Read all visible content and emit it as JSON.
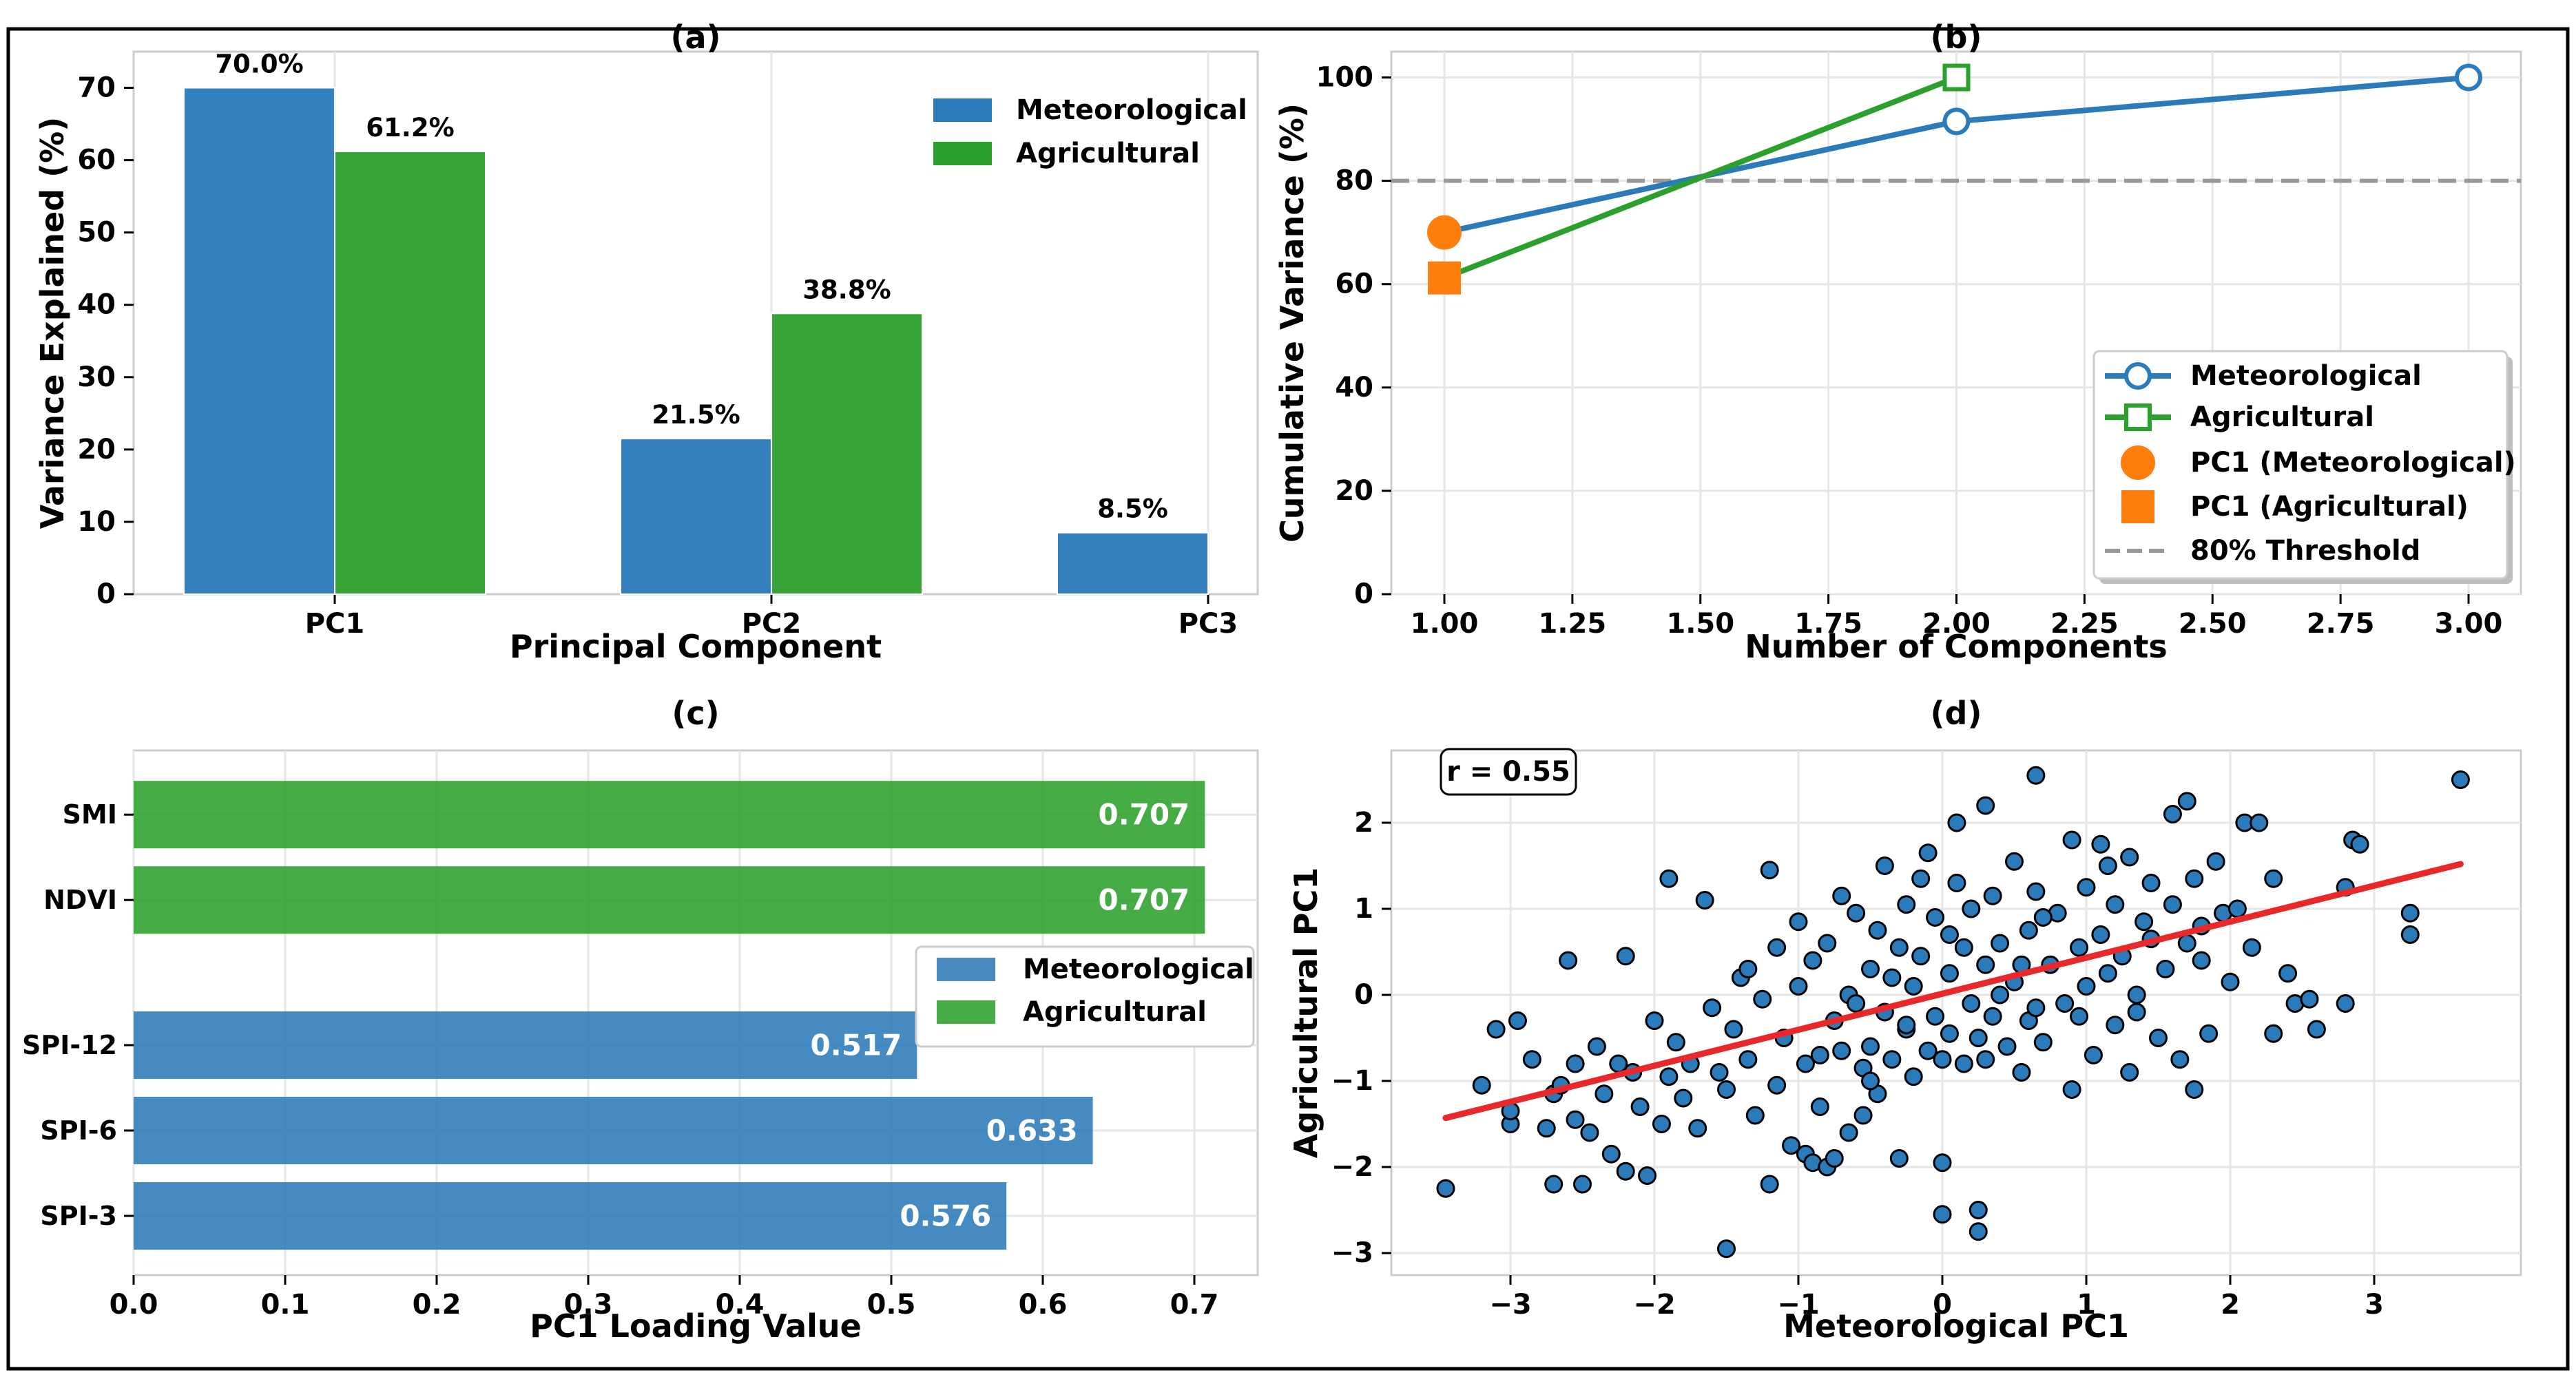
{
  "colors": {
    "meteorological": "#2b7bba",
    "agricultural": "#2ca02c",
    "pc1_marker": "#ff7f0e",
    "threshold": "#999999",
    "regression": "#e8282b",
    "grid": "#e6e6e6"
  },
  "chart_data": [
    {
      "panel": "a",
      "type": "bar",
      "title": "(a)",
      "xlabel": "Principal Component",
      "ylabel": "Variance Explained (%)",
      "categories": [
        "PC1",
        "PC2",
        "PC3"
      ],
      "ylim": [
        0,
        75
      ],
      "yticks": [
        0,
        10,
        20,
        30,
        40,
        50,
        60,
        70
      ],
      "series": [
        {
          "name": "Meteorological",
          "values": [
            70.0,
            21.5,
            8.5
          ],
          "labels": [
            "70.0%",
            "21.5%",
            "8.5%"
          ]
        },
        {
          "name": "Agricultural",
          "values": [
            61.2,
            38.8,
            null
          ],
          "labels": [
            "61.2%",
            "38.8%",
            ""
          ]
        }
      ],
      "legend": "top-right"
    },
    {
      "panel": "b",
      "type": "line",
      "title": "(b)",
      "xlabel": "Number of Components",
      "ylabel": "Cumulative Variance (%)",
      "xlim": [
        0.9,
        3.1
      ],
      "ylim": [
        0,
        105
      ],
      "xticks": [
        1.0,
        1.25,
        1.5,
        1.75,
        2.0,
        2.25,
        2.5,
        2.75,
        3.0
      ],
      "xtick_labels": [
        "1.00",
        "1.25",
        "1.50",
        "1.75",
        "2.00",
        "2.25",
        "2.50",
        "2.75",
        "3.00"
      ],
      "yticks": [
        0,
        20,
        40,
        60,
        80,
        100
      ],
      "series": [
        {
          "name": "Meteorological",
          "x": [
            1,
            2,
            3
          ],
          "y": [
            70.0,
            91.5,
            100.0
          ],
          "marker": "circle"
        },
        {
          "name": "Agricultural",
          "x": [
            1,
            2
          ],
          "y": [
            61.2,
            100.0
          ],
          "marker": "square"
        }
      ],
      "points": [
        {
          "name": "PC1 (Meteorological)",
          "x": 1,
          "y": 70.0,
          "marker": "circle"
        },
        {
          "name": "PC1 (Agricultural)",
          "x": 1,
          "y": 61.2,
          "marker": "square"
        }
      ],
      "threshold": {
        "name": "80% Threshold",
        "y": 80
      },
      "legend": "lower-right"
    },
    {
      "panel": "c",
      "type": "bar",
      "orientation": "horizontal",
      "title": "(c)",
      "xlabel": "PC1 Loading Value",
      "ylabel": "",
      "xlim": [
        0,
        0.72
      ],
      "xticks": [
        0.0,
        0.1,
        0.2,
        0.3,
        0.4,
        0.5,
        0.6,
        0.7
      ],
      "xtick_labels": [
        "0.0",
        "0.1",
        "0.2",
        "0.3",
        "0.4",
        "0.5",
        "0.6",
        "0.7"
      ],
      "bars": [
        {
          "label": "SPI-3",
          "value": 0.576,
          "text": "0.576",
          "group": "Meteorological",
          "slot": 0
        },
        {
          "label": "SPI-6",
          "value": 0.633,
          "text": "0.633",
          "group": "Meteorological",
          "slot": 1
        },
        {
          "label": "SPI-12",
          "value": 0.517,
          "text": "0.517",
          "group": "Meteorological",
          "slot": 2
        },
        {
          "label": "NDVI",
          "value": 0.707,
          "text": "0.707",
          "group": "Agricultural",
          "slot": 3.7
        },
        {
          "label": "SMI",
          "value": 0.707,
          "text": "0.707",
          "group": "Agricultural",
          "slot": 4.7
        }
      ],
      "legend_entries": [
        "Meteorological",
        "Agricultural"
      ],
      "legend": "center-right"
    },
    {
      "panel": "d",
      "type": "scatter",
      "title": "(d)",
      "xlabel": "Meteorological PC1",
      "ylabel": "Agricultural PC1",
      "xlim": [
        -3.8,
        3.95
      ],
      "ylim": [
        -3.2,
        2.8
      ],
      "xticks": [
        -3,
        -2,
        -1,
        0,
        1,
        2,
        3
      ],
      "xtick_labels": [
        "−3",
        "−2",
        "−1",
        "0",
        "1",
        "2",
        "3"
      ],
      "yticks": [
        -3,
        -2,
        -1,
        0,
        1,
        2
      ],
      "ytick_labels": [
        "−3",
        "−2",
        "−1",
        "0",
        "1",
        "2"
      ],
      "annotation": "r = 0.55",
      "regression": {
        "x": [
          -3.45,
          3.6
        ],
        "y": [
          -1.43,
          1.52
        ]
      },
      "points": [
        [
          -3.45,
          -2.25
        ],
        [
          -3.2,
          -1.05
        ],
        [
          -3.1,
          -0.4
        ],
        [
          -3.0,
          -1.5
        ],
        [
          -3.0,
          -1.35
        ],
        [
          -2.95,
          -0.3
        ],
        [
          -2.85,
          -0.75
        ],
        [
          -2.75,
          -1.55
        ],
        [
          -2.7,
          -1.15
        ],
        [
          -2.7,
          -2.2
        ],
        [
          -2.65,
          -1.05
        ],
        [
          -2.6,
          0.4
        ],
        [
          -2.55,
          -0.8
        ],
        [
          -2.55,
          -1.45
        ],
        [
          -2.5,
          -2.2
        ],
        [
          -2.45,
          -1.6
        ],
        [
          -2.4,
          -0.6
        ],
        [
          -2.35,
          -1.15
        ],
        [
          -2.3,
          -1.85
        ],
        [
          -2.25,
          -0.8
        ],
        [
          -2.2,
          0.45
        ],
        [
          -2.2,
          -2.05
        ],
        [
          -2.15,
          -0.9
        ],
        [
          -2.1,
          -1.3
        ],
        [
          -2.05,
          -2.1
        ],
        [
          -2.0,
          -0.3
        ],
        [
          -1.95,
          -1.5
        ],
        [
          -1.9,
          -0.95
        ],
        [
          -1.9,
          1.35
        ],
        [
          -1.85,
          -0.55
        ],
        [
          -1.8,
          -1.2
        ],
        [
          -1.75,
          -0.8
        ],
        [
          -1.7,
          -1.55
        ],
        [
          -1.65,
          1.1
        ],
        [
          -1.6,
          -0.15
        ],
        [
          -1.55,
          -0.9
        ],
        [
          -1.5,
          -2.95
        ],
        [
          -1.5,
          -1.1
        ],
        [
          -1.45,
          -0.4
        ],
        [
          -1.4,
          0.2
        ],
        [
          -1.35,
          -0.75
        ],
        [
          -1.3,
          -1.4
        ],
        [
          -1.25,
          -0.05
        ],
        [
          -1.2,
          -2.2
        ],
        [
          -1.2,
          1.45
        ],
        [
          -1.15,
          -1.05
        ],
        [
          -1.1,
          -0.5
        ],
        [
          -1.05,
          -1.75
        ],
        [
          -1.0,
          0.1
        ],
        [
          -1.0,
          0.85
        ],
        [
          -0.95,
          -0.8
        ],
        [
          -0.95,
          -1.85
        ],
        [
          -0.9,
          -1.95
        ],
        [
          -0.9,
          0.4
        ],
        [
          -0.85,
          -1.3
        ],
        [
          -0.8,
          0.6
        ],
        [
          -0.8,
          -2.0
        ],
        [
          -0.75,
          -0.3
        ],
        [
          -0.75,
          -1.9
        ],
        [
          -0.7,
          1.15
        ],
        [
          -0.7,
          -0.65
        ],
        [
          -0.65,
          0.0
        ],
        [
          -0.65,
          -1.6
        ],
        [
          -0.6,
          0.95
        ],
        [
          -0.55,
          -0.85
        ],
        [
          -0.55,
          -1.4
        ],
        [
          -0.5,
          0.3
        ],
        [
          -0.5,
          -0.6
        ],
        [
          -0.45,
          0.75
        ],
        [
          -0.45,
          -1.15
        ],
        [
          -0.4,
          -0.2
        ],
        [
          -0.4,
          1.5
        ],
        [
          -0.35,
          -0.75
        ],
        [
          -0.3,
          0.55
        ],
        [
          -0.3,
          -1.9
        ],
        [
          -0.25,
          -0.4
        ],
        [
          -0.25,
          1.05
        ],
        [
          -0.2,
          0.1
        ],
        [
          -0.2,
          -0.95
        ],
        [
          -0.15,
          0.45
        ],
        [
          -0.1,
          -0.65
        ],
        [
          -0.1,
          1.65
        ],
        [
          -0.05,
          -0.25
        ],
        [
          -0.05,
          0.9
        ],
        [
          0.0,
          -0.75
        ],
        [
          0.0,
          -2.55
        ],
        [
          0.0,
          -1.95
        ],
        [
          0.05,
          0.25
        ],
        [
          0.05,
          -0.45
        ],
        [
          0.1,
          1.3
        ],
        [
          0.1,
          2.0
        ],
        [
          0.15,
          -0.8
        ],
        [
          0.15,
          0.55
        ],
        [
          0.2,
          -0.1
        ],
        [
          0.2,
          1.0
        ],
        [
          0.25,
          -2.5
        ],
        [
          0.25,
          -2.75
        ],
        [
          0.25,
          -0.5
        ],
        [
          0.3,
          0.35
        ],
        [
          0.3,
          2.2
        ],
        [
          0.35,
          -0.25
        ],
        [
          0.35,
          1.15
        ],
        [
          0.4,
          0.6
        ],
        [
          0.45,
          -0.6
        ],
        [
          0.5,
          0.15
        ],
        [
          0.5,
          1.55
        ],
        [
          0.55,
          -0.9
        ],
        [
          0.6,
          0.75
        ],
        [
          0.6,
          -0.3
        ],
        [
          0.65,
          2.55
        ],
        [
          0.65,
          1.2
        ],
        [
          0.7,
          -0.55
        ],
        [
          0.75,
          0.35
        ],
        [
          0.8,
          0.95
        ],
        [
          0.85,
          -0.1
        ],
        [
          0.9,
          1.8
        ],
        [
          0.9,
          -1.1
        ],
        [
          0.95,
          0.55
        ],
        [
          1.0,
          0.1
        ],
        [
          1.0,
          1.25
        ],
        [
          1.05,
          -0.7
        ],
        [
          1.1,
          0.7
        ],
        [
          1.1,
          1.75
        ],
        [
          1.15,
          0.25
        ],
        [
          1.2,
          -0.35
        ],
        [
          1.2,
          1.05
        ],
        [
          1.25,
          0.45
        ],
        [
          1.3,
          -0.9
        ],
        [
          1.3,
          1.6
        ],
        [
          1.35,
          0.0
        ],
        [
          1.4,
          0.85
        ],
        [
          1.45,
          1.3
        ],
        [
          1.5,
          -0.5
        ],
        [
          1.55,
          0.3
        ],
        [
          1.6,
          1.05
        ],
        [
          1.6,
          2.1
        ],
        [
          1.65,
          -0.75
        ],
        [
          1.7,
          0.6
        ],
        [
          1.7,
          2.25
        ],
        [
          1.75,
          -1.1
        ],
        [
          1.75,
          1.35
        ],
        [
          1.8,
          0.4
        ],
        [
          1.85,
          -0.45
        ],
        [
          1.9,
          1.55
        ],
        [
          1.95,
          0.95
        ],
        [
          2.0,
          0.15
        ],
        [
          2.05,
          1.0
        ],
        [
          2.1,
          2.0
        ],
        [
          2.2,
          2.0
        ],
        [
          2.3,
          -0.45
        ],
        [
          2.3,
          1.35
        ],
        [
          2.4,
          0.25
        ],
        [
          2.45,
          -0.1
        ],
        [
          2.55,
          -0.05
        ],
        [
          2.6,
          -0.4
        ],
        [
          2.8,
          1.25
        ],
        [
          2.8,
          -0.1
        ],
        [
          2.85,
          1.8
        ],
        [
          2.9,
          1.75
        ],
        [
          3.25,
          0.95
        ],
        [
          3.25,
          0.7
        ],
        [
          3.6,
          2.5
        ],
        [
          -0.15,
          1.35
        ],
        [
          0.4,
          0.0
        ],
        [
          0.7,
          0.9
        ],
        [
          -0.6,
          -0.1
        ],
        [
          1.15,
          1.5
        ],
        [
          -1.15,
          0.55
        ],
        [
          0.55,
          0.35
        ],
        [
          -0.35,
          0.2
        ],
        [
          1.45,
          0.65
        ],
        [
          0.95,
          -0.25
        ],
        [
          -0.85,
          -0.7
        ],
        [
          0.3,
          -0.75
        ],
        [
          -0.5,
          -1.0
        ],
        [
          1.8,
          0.8
        ],
        [
          -1.35,
          0.3
        ],
        [
          2.15,
          0.55
        ],
        [
          0.05,
          0.7
        ],
        [
          -0.25,
          -0.35
        ],
        [
          0.65,
          -0.15
        ],
        [
          1.35,
          -0.2
        ]
      ]
    }
  ]
}
